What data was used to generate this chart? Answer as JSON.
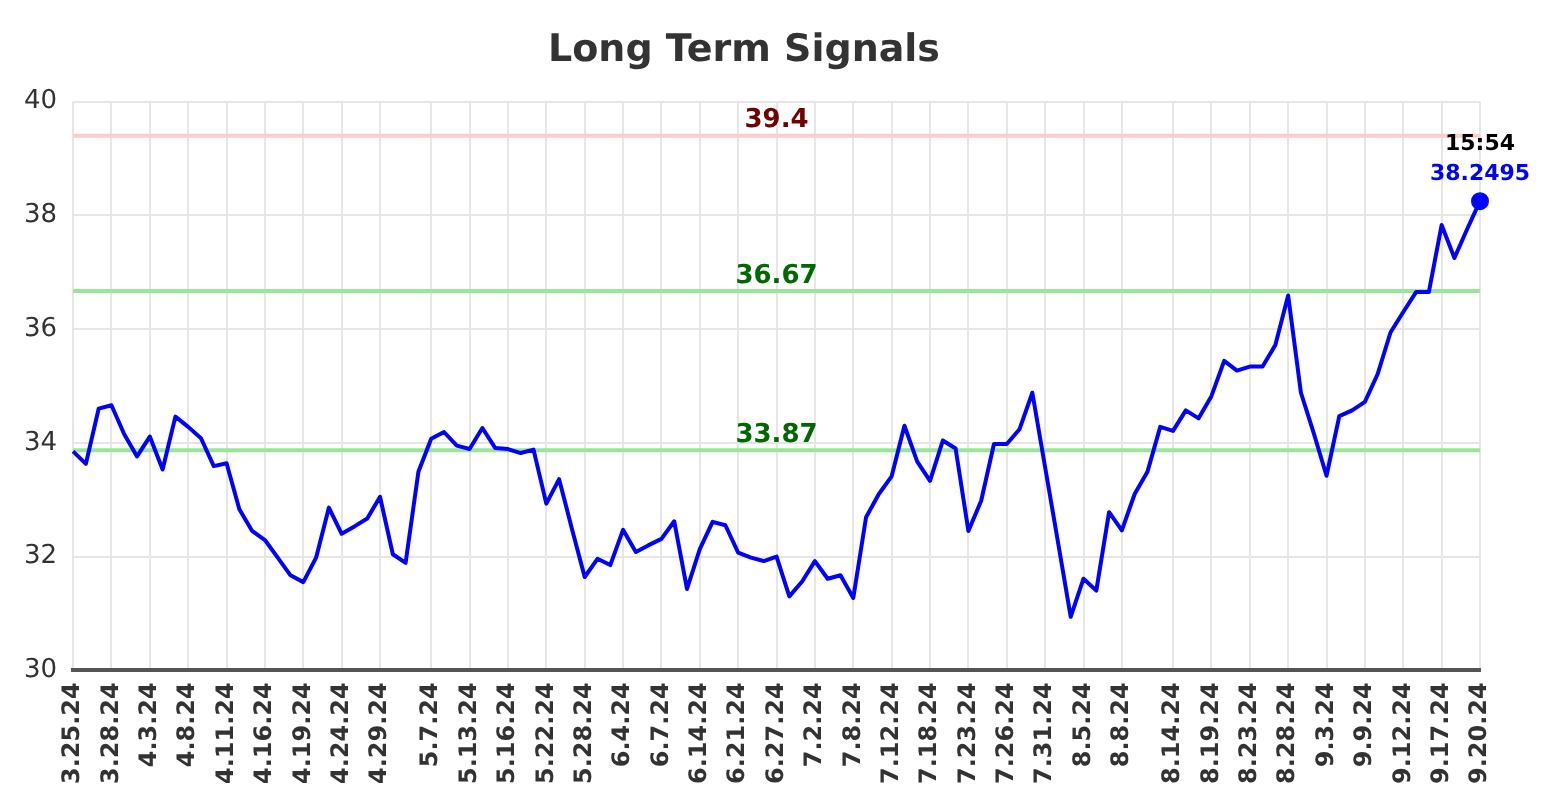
{
  "chart_data": {
    "type": "line",
    "title": "Long Term Signals",
    "categories": [
      "3.25.24",
      null,
      null,
      "3.28.24",
      null,
      null,
      "4.3.24",
      null,
      null,
      "4.8.24",
      null,
      null,
      "4.11.24",
      null,
      null,
      "4.16.24",
      null,
      null,
      "4.19.24",
      null,
      null,
      "4.24.24",
      null,
      null,
      "4.29.24",
      null,
      null,
      null,
      "5.7.24",
      null,
      null,
      "5.13.24",
      null,
      null,
      "5.16.24",
      null,
      null,
      "5.22.24",
      null,
      null,
      "5.28.24",
      null,
      null,
      "6.4.24",
      null,
      null,
      "6.7.24",
      null,
      null,
      "6.14.24",
      null,
      null,
      "6.21.24",
      null,
      null,
      "6.27.24",
      null,
      null,
      "7.2.24",
      null,
      null,
      "7.8.24",
      null,
      null,
      "7.12.24",
      null,
      null,
      "7.18.24",
      null,
      null,
      "7.23.24",
      null,
      null,
      "7.26.24",
      null,
      null,
      "7.31.24",
      null,
      null,
      "8.5.24",
      null,
      null,
      "8.8.24",
      null,
      null,
      null,
      "8.14.24",
      null,
      null,
      "8.19.24",
      null,
      null,
      "8.23.24",
      null,
      null,
      "8.28.24",
      null,
      null,
      "9.3.24",
      null,
      null,
      "9.9.24",
      null,
      null,
      "9.12.24",
      null,
      null,
      "9.17.24",
      null,
      null,
      "9.20.24"
    ],
    "series": [
      {
        "color": "#0000ff",
        "values": [
          33.85,
          33.63,
          34.6,
          34.66,
          34.15,
          33.76,
          34.11,
          33.53,
          34.46,
          34.28,
          34.08,
          33.59,
          33.64,
          32.83,
          32.45,
          32.29,
          31.98,
          31.67,
          31.55,
          31.98,
          32.86,
          32.4,
          32.53,
          32.67,
          33.05,
          32.04,
          31.89,
          33.49,
          34.07,
          34.19,
          33.95,
          33.89,
          34.26,
          33.91,
          33.89,
          33.82,
          33.88,
          32.93,
          33.36,
          32.49,
          31.64,
          31.96,
          31.85,
          32.47,
          32.08,
          32.2,
          32.31,
          32.62,
          31.43,
          32.13,
          32.61,
          32.55,
          32.07,
          31.98,
          31.92,
          32.0,
          31.3,
          31.56,
          31.92,
          31.61,
          31.67,
          31.27,
          32.69,
          33.1,
          33.41,
          34.3,
          33.67,
          33.33,
          34.04,
          33.9,
          32.45,
          32.98,
          33.98,
          33.98,
          34.24,
          34.88,
          33.57,
          32.26,
          30.94,
          31.61,
          31.4,
          32.78,
          32.46,
          33.1,
          33.49,
          34.28,
          34.21,
          34.57,
          34.43,
          34.82,
          35.44,
          35.27,
          35.34,
          35.34,
          35.72,
          36.59,
          34.88,
          34.17,
          33.42,
          34.47,
          34.57,
          34.72,
          35.21,
          35.94,
          36.3,
          36.65,
          36.65,
          37.83,
          37.25,
          37.76,
          38.2495
        ]
      },
      {
        "type": "scatter",
        "color": "#0000ff",
        "x": [
          "9.20.24"
        ],
        "values": [
          38.2495
        ]
      }
    ],
    "ylim": [
      30,
      40
    ],
    "yticks": [
      30,
      32,
      34,
      36,
      38,
      40
    ],
    "grid": true,
    "legend": false,
    "ref_lines": [
      {
        "axis": "y",
        "value": 39.4,
        "label": "39.4",
        "color": "#ffcccc"
      },
      {
        "axis": "y",
        "value": 36.67,
        "label": "36.67",
        "color": "#99e699"
      },
      {
        "axis": "y",
        "value": 33.87,
        "label": "33.87",
        "color": "#99e699"
      }
    ],
    "annotations": [
      {
        "text": "15:54",
        "x": "9.20.24",
        "y": 38.2495
      },
      {
        "text": "38.2495",
        "x": "9.20.24",
        "y": 38.2495
      }
    ]
  }
}
